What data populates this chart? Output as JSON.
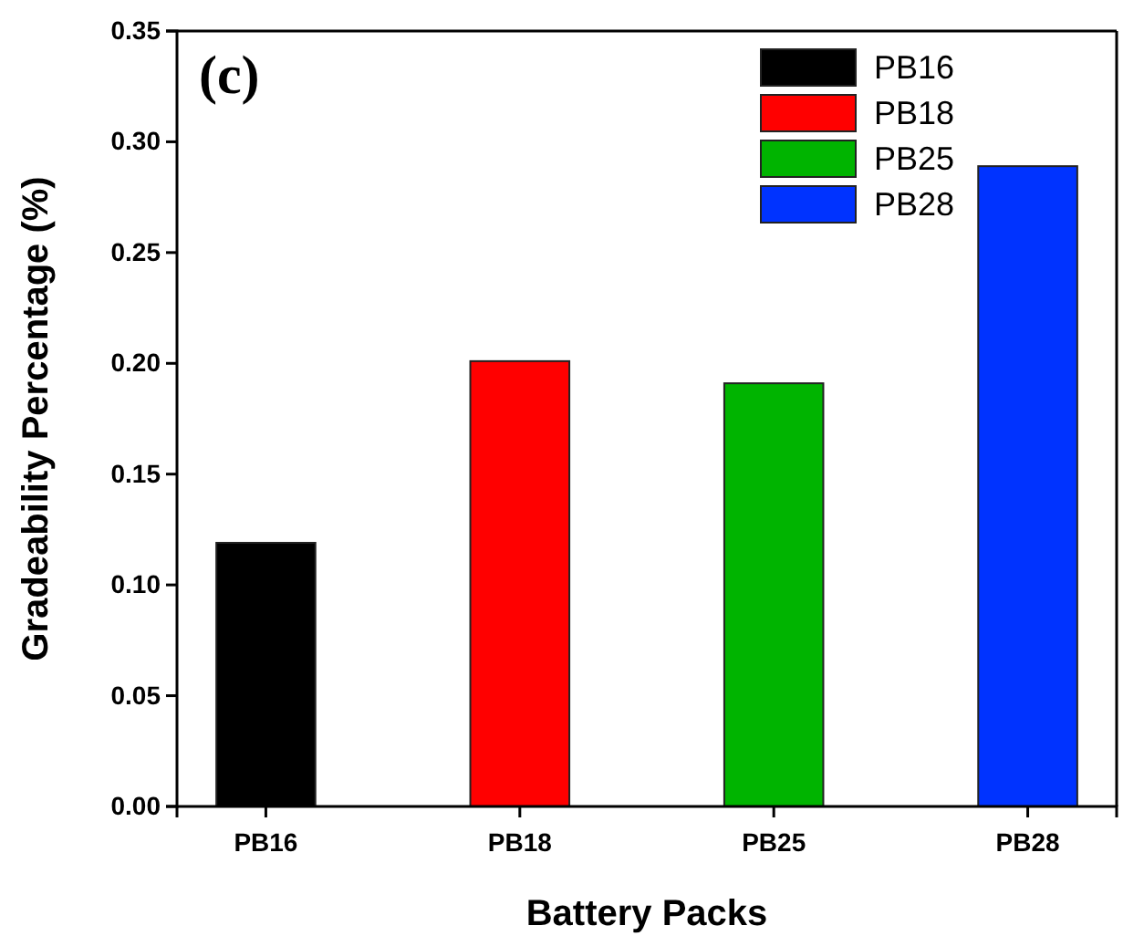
{
  "chart_data": {
    "type": "bar",
    "xlabel": "Battery Packs",
    "ylabel": "Gradeability Percentage (%)",
    "categories": [
      "PB16",
      "PB18",
      "PB25",
      "PB28"
    ],
    "series": [
      {
        "name": "PB16",
        "color": "#000000",
        "values": [
          0.119,
          null,
          null,
          null
        ]
      },
      {
        "name": "PB18",
        "color": "#ff0000",
        "values": [
          null,
          0.201,
          null,
          null
        ]
      },
      {
        "name": "PB25",
        "color": "#00b400",
        "values": [
          null,
          null,
          0.191,
          null
        ]
      },
      {
        "name": "PB28",
        "color": "#0033ff",
        "values": [
          null,
          null,
          null,
          0.289
        ]
      }
    ],
    "ylim": [
      0,
      0.35
    ],
    "yticks": [
      {
        "value": 0,
        "label": "0.00"
      },
      {
        "value": 0.05,
        "label": "0.05"
      },
      {
        "value": 0.1,
        "label": "0.10"
      },
      {
        "value": 0.15,
        "label": "0.15"
      },
      {
        "value": 0.2,
        "label": "0.20"
      },
      {
        "value": 0.25,
        "label": "0.25"
      },
      {
        "value": 0.3,
        "label": "0.30"
      },
      {
        "value": 0.35,
        "label": "0.35"
      }
    ],
    "legend": "top right",
    "annotations": [
      "(c)"
    ]
  }
}
